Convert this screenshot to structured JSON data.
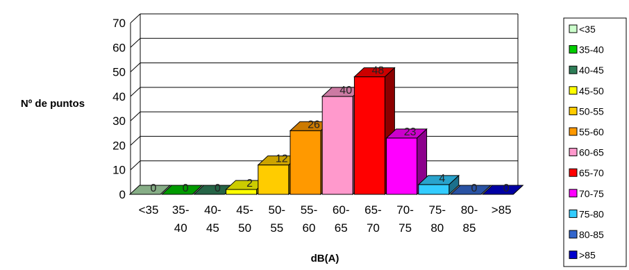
{
  "chart_data": {
    "type": "bar",
    "style": "3d-columns",
    "xlabel": "dB(A)",
    "ylabel": "Nº de puntos",
    "ylim": [
      0,
      70
    ],
    "yticks": [
      0,
      10,
      20,
      30,
      40,
      50,
      60,
      70
    ],
    "grid": true,
    "legend_position": "right",
    "categories": [
      "<35",
      "35-40",
      "40-45",
      "45-50",
      "50-55",
      "55-60",
      "60-65",
      "65-70",
      "70-75",
      "75-80",
      "80-85",
      ">85"
    ],
    "tick_labels": [
      [
        "<35"
      ],
      [
        "35-",
        "40"
      ],
      [
        "40-",
        "45"
      ],
      [
        "45-",
        "50"
      ],
      [
        "50-",
        "55"
      ],
      [
        "55-",
        "60"
      ],
      [
        "60-",
        "65"
      ],
      [
        "65-",
        "70"
      ],
      [
        "70-",
        "75"
      ],
      [
        "75-",
        "80"
      ],
      [
        "80-",
        "85"
      ],
      [
        ">85"
      ]
    ],
    "values": [
      0,
      0,
      0,
      2,
      12,
      26,
      40,
      48,
      23,
      4,
      0,
      0
    ],
    "colors": [
      "#a8d8a8",
      "#00c000",
      "#2e7d57",
      "#ffff00",
      "#ffcc00",
      "#ff9900",
      "#ff99cc",
      "#ff0000",
      "#ff00ff",
      "#33ccff",
      "#3366cc",
      "#0000cc"
    ],
    "legend_colors": [
      "#ccffcc",
      "#00cc00",
      "#2e7d57",
      "#ffff00",
      "#ffcc00",
      "#ff9900",
      "#ff99cc",
      "#ff0000",
      "#ff00ff",
      "#33ccff",
      "#3366cc",
      "#0000cc"
    ]
  }
}
